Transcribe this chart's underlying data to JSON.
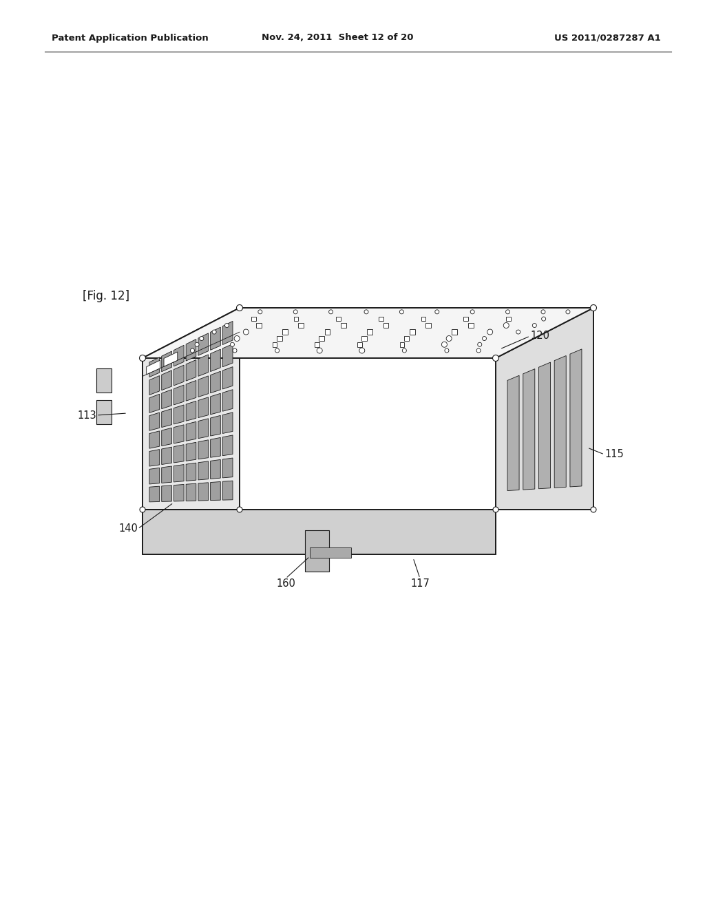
{
  "bg_color": "#ffffff",
  "header_left": "Patent Application Publication",
  "header_mid": "Nov. 24, 2011  Sheet 12 of 20",
  "header_right": "US 2011/0287287 A1",
  "fig_label": "[Fig. 12]",
  "line_color": "#1a1a1a",
  "text_color": "#1a1a1a",
  "face_top": "#f5f5f5",
  "face_left": "#e8e8e8",
  "face_right": "#dedede",
  "face_bottom": "#d0d0d0",
  "slot_color": "#b0b0b0",
  "cell_color": "#a0a0a0",
  "top_hole_color": "#d8d8d8",
  "lw_main": 1.4,
  "lw_thin": 0.8,
  "lw_detail": 0.6,
  "label_fontsize": 10.5,
  "header_fontsize": 9.5,
  "fig_label_fontsize": 12
}
